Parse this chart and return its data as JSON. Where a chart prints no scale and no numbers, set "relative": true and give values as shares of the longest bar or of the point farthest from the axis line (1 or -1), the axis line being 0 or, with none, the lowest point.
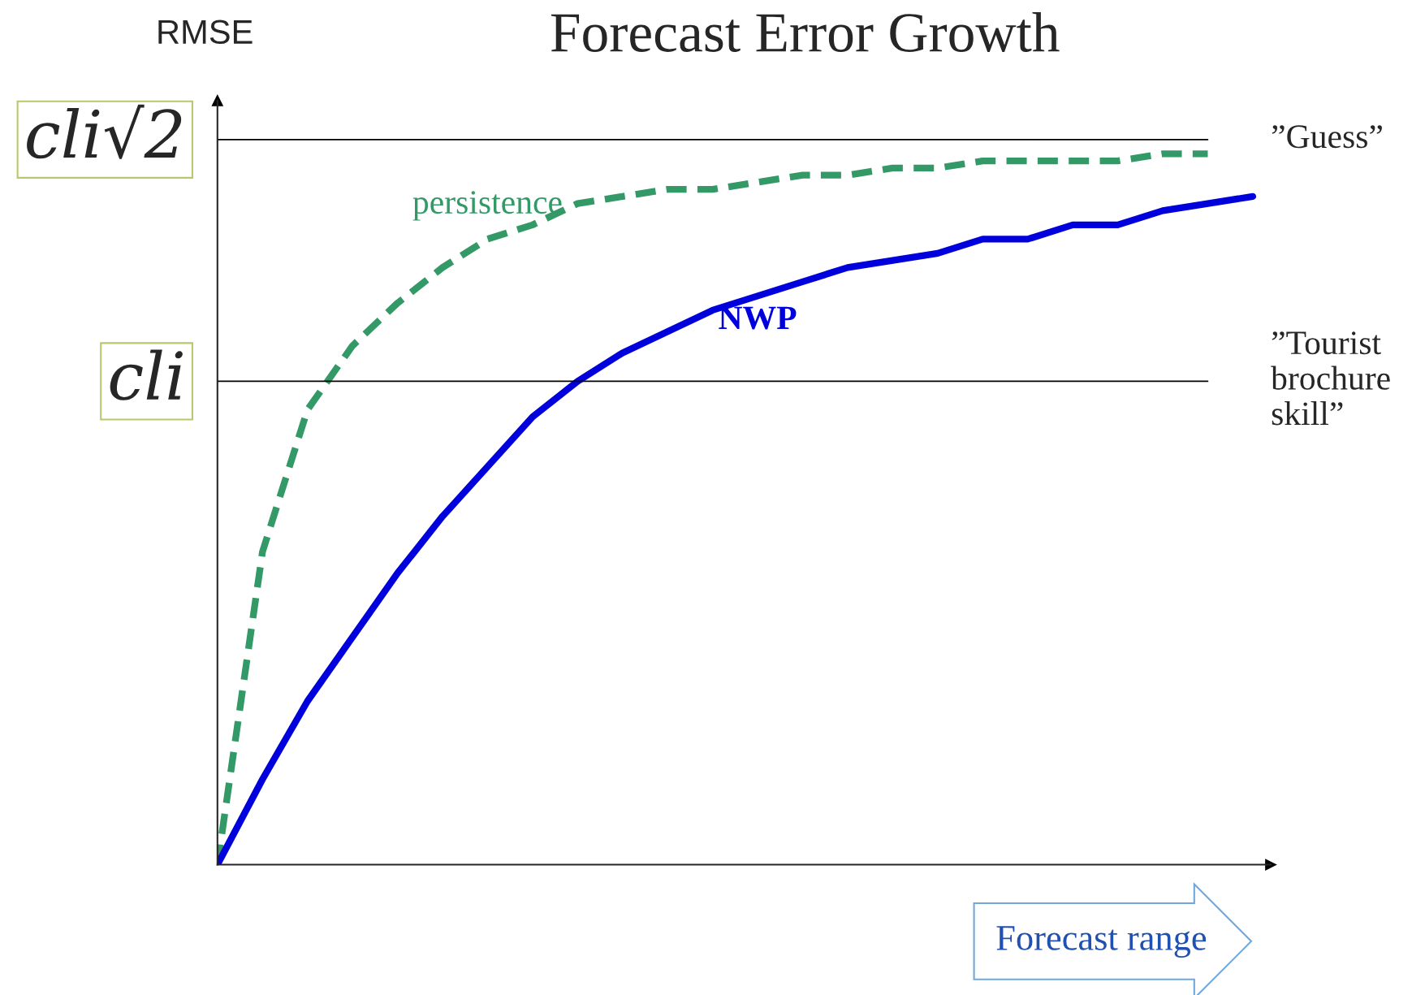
{
  "chart_data": {
    "type": "line",
    "title": "Forecast Error Growth",
    "ylabel": "RMSE",
    "xlabel": "Forecast range",
    "relative": true,
    "categories": [
      null,
      null,
      null,
      null,
      null,
      null,
      null,
      null,
      null,
      null,
      null,
      null,
      null,
      null,
      null,
      null,
      null,
      null,
      null,
      null,
      null,
      null,
      null,
      null
    ],
    "series": [
      {
        "name": "persistence",
        "color": "#339966",
        "line_style": "dashed",
        "values": [
          0,
          0.44,
          0.64,
          0.73,
          0.79,
          0.84,
          0.88,
          0.9,
          0.93,
          0.94,
          0.95,
          0.95,
          0.96,
          0.97,
          0.97,
          0.98,
          0.98,
          0.99,
          0.99,
          0.99,
          0.99,
          1,
          1,
          null
        ]
      },
      {
        "name": "NWP",
        "color": "#0000dd",
        "line_style": "solid",
        "values": [
          0,
          0.12,
          0.23,
          0.32,
          0.41,
          0.49,
          0.56,
          0.63,
          0.68,
          0.72,
          0.75,
          0.78,
          0.8,
          0.82,
          0.84,
          0.85,
          0.86,
          0.88,
          0.88,
          0.9,
          0.9,
          0.92,
          0.93,
          0.94
        ]
      }
    ],
    "ref_lines": [
      {
        "axis": "y",
        "value": 1.02,
        "label": "cli√2",
        "color": "#000000"
      },
      {
        "axis": "y",
        "value": 0.68,
        "label": "cli",
        "color": "#000000"
      }
    ],
    "annotations": [
      "”Guess”",
      "”Tourist brochure skill”"
    ],
    "legend": false
  }
}
